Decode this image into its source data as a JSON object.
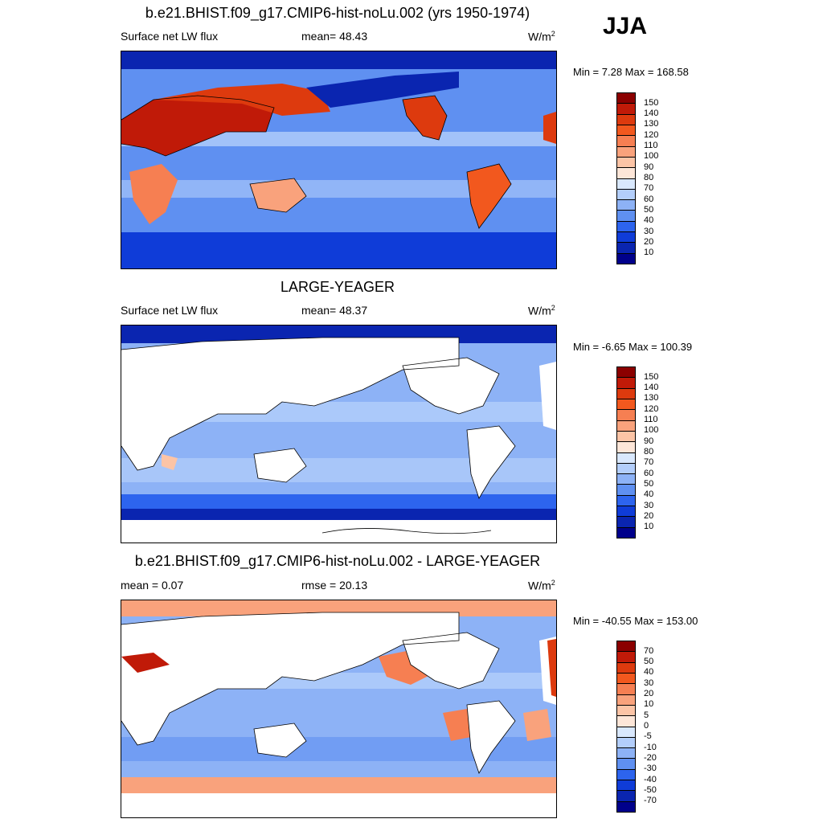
{
  "season": "JJA",
  "panels": [
    {
      "title": "b.e21.BHIST.f09_g17.CMIP6-hist-noLu.002 (yrs 1950-1974)",
      "left_label": "Surface net LW flux",
      "center_label": "mean=  48.43",
      "units": "W/m",
      "units_sup": "2",
      "minmax": "Min =   7.28 Max = 168.58",
      "ocean_color": "#6a98ef",
      "land_color": "#e8704a",
      "colorbar": {
        "labels": [
          "150",
          "140",
          "130",
          "120",
          "110",
          "100",
          "90",
          "80",
          "70",
          "60",
          "50",
          "40",
          "30",
          "20",
          "10"
        ],
        "colors": [
          "#8b0000",
          "#c01a08",
          "#dd3a0e",
          "#f2581e",
          "#f67f52",
          "#f9a27c",
          "#fcc4a6",
          "#fde6d8",
          "#d9e8fd",
          "#b3cefb",
          "#8db2f6",
          "#5f90f1",
          "#2d64ee",
          "#0f3cd8",
          "#0a25b0",
          "#00008b"
        ]
      }
    },
    {
      "title": "LARGE-YEAGER",
      "left_label": "Surface net LW flux",
      "center_label": "mean=  48.37",
      "units": "W/m",
      "units_sup": "2",
      "minmax": "Min =  -6.65 Max = 100.39",
      "ocean_color": "#7fa5f2",
      "land_color": "#ffffff",
      "colorbar": {
        "labels": [
          "150",
          "140",
          "130",
          "120",
          "110",
          "100",
          "90",
          "80",
          "70",
          "60",
          "50",
          "40",
          "30",
          "20",
          "10"
        ],
        "colors": [
          "#8b0000",
          "#c01a08",
          "#dd3a0e",
          "#f2581e",
          "#f67f52",
          "#f9a27c",
          "#fcc4a6",
          "#fde6d8",
          "#d9e8fd",
          "#b3cefb",
          "#8db2f6",
          "#5f90f1",
          "#2d64ee",
          "#0f3cd8",
          "#0a25b0",
          "#00008b"
        ]
      }
    },
    {
      "title": "b.e21.BHIST.f09_g17.CMIP6-hist-noLu.002 - LARGE-YEAGER",
      "left_label": "mean =   0.07",
      "center_label": "rmse =  20.13",
      "units": "W/m",
      "units_sup": "2",
      "minmax": "Min = -40.55 Max = 153.00",
      "ocean_color": "#8db2f6",
      "land_color": "#ffffff",
      "colorbar": {
        "labels": [
          "70",
          "50",
          "40",
          "30",
          "20",
          "10",
          "5",
          "0",
          "-5",
          "-10",
          "-20",
          "-30",
          "-40",
          "-50",
          "-70"
        ],
        "colors": [
          "#8b0000",
          "#c01a08",
          "#dd3a0e",
          "#f2581e",
          "#f67f52",
          "#f9a27c",
          "#fcc4a6",
          "#fde6d8",
          "#d9e8fd",
          "#b3cefb",
          "#8db2f6",
          "#5f90f1",
          "#2d64ee",
          "#0f3cd8",
          "#0a25b0",
          "#00008b"
        ]
      }
    }
  ]
}
